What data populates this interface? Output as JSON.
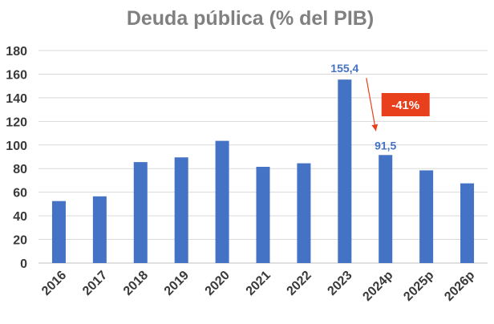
{
  "chart_data": {
    "type": "bar",
    "title": "Deuda pública (% del PIB)",
    "categories": [
      "2016",
      "2017",
      "2018",
      "2019",
      "2020",
      "2021",
      "2022",
      "2023",
      "2024p",
      "2025p",
      "2026p"
    ],
    "values": [
      52.5,
      56.5,
      85.5,
      89.5,
      103.5,
      81.5,
      84.5,
      155.4,
      91.5,
      78.5,
      67.5
    ],
    "data_labels": [
      {
        "category": "2023",
        "text": "155,4"
      },
      {
        "category": "2024p",
        "text": "91,5"
      }
    ],
    "annotation": {
      "text": "-41%",
      "from": "2023",
      "to": "2024p"
    },
    "ylim": [
      0,
      180
    ],
    "yticks": [
      0,
      20,
      40,
      60,
      80,
      100,
      120,
      140,
      160,
      180
    ],
    "grid": true,
    "colors": {
      "bar": "#4472c4",
      "annotation": "#e8401c",
      "label": "#4472c4"
    }
  }
}
